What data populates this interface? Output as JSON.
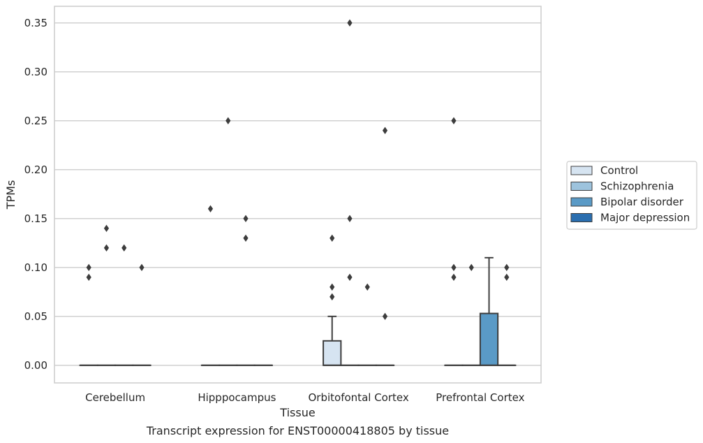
{
  "chart_data": {
    "type": "boxplot",
    "caption": "Transcript expression for ENST00000418805 by tissue",
    "xlabel": "Tissue",
    "ylabel": "TPMs",
    "ylim": [
      -0.018,
      0.367
    ],
    "yticks": [
      0.0,
      0.05,
      0.1,
      0.15,
      0.2,
      0.25,
      0.3,
      0.35
    ],
    "ytick_labels": [
      "0.00",
      "0.05",
      "0.10",
      "0.15",
      "0.20",
      "0.25",
      "0.30",
      "0.35"
    ],
    "grid": "horizontal",
    "legend_placement": "right, outside plot",
    "categories": [
      "Cerebellum",
      "Hipppocampus",
      "Orbitofontal Cortex",
      "Prefrontal Cortex"
    ],
    "series": [
      {
        "name": "Control",
        "color": "#d6e4f1",
        "boxes": [
          {
            "q1": 0.0,
            "median": 0.0,
            "q3": 0.0,
            "whislo": 0.0,
            "whishi": 0.0,
            "fliers": [
              0.1,
              0.09
            ]
          },
          {
            "q1": 0.0,
            "median": 0.0,
            "q3": 0.0,
            "whislo": 0.0,
            "whishi": 0.0,
            "fliers": [
              0.16
            ]
          },
          {
            "q1": 0.0,
            "median": 0.0,
            "q3": 0.025,
            "whislo": 0.0,
            "whishi": 0.05,
            "fliers": [
              0.13,
              0.08,
              0.07
            ]
          },
          {
            "q1": 0.0,
            "median": 0.0,
            "q3": 0.0,
            "whislo": 0.0,
            "whishi": 0.0,
            "fliers": [
              0.25,
              0.1,
              0.09
            ]
          }
        ]
      },
      {
        "name": "Schizophrenia",
        "color": "#9dc3dd",
        "boxes": [
          {
            "q1": 0.0,
            "median": 0.0,
            "q3": 0.0,
            "whislo": 0.0,
            "whishi": 0.0,
            "fliers": [
              0.14,
              0.12
            ]
          },
          {
            "q1": 0.0,
            "median": 0.0,
            "q3": 0.0,
            "whislo": 0.0,
            "whishi": 0.0,
            "fliers": [
              0.25
            ]
          },
          {
            "q1": 0.0,
            "median": 0.0,
            "q3": 0.0,
            "whislo": 0.0,
            "whishi": 0.0,
            "fliers": [
              0.35,
              0.15,
              0.09
            ]
          },
          {
            "q1": 0.0,
            "median": 0.0,
            "q3": 0.0,
            "whislo": 0.0,
            "whishi": 0.0,
            "fliers": [
              0.1
            ]
          }
        ]
      },
      {
        "name": "Bipolar disorder",
        "color": "#5a9ac6",
        "boxes": [
          {
            "q1": 0.0,
            "median": 0.0,
            "q3": 0.0,
            "whislo": 0.0,
            "whishi": 0.0,
            "fliers": [
              0.12
            ]
          },
          {
            "q1": 0.0,
            "median": 0.0,
            "q3": 0.0,
            "whislo": 0.0,
            "whishi": 0.0,
            "fliers": [
              0.15,
              0.13
            ]
          },
          {
            "q1": 0.0,
            "median": 0.0,
            "q3": 0.0,
            "whislo": 0.0,
            "whishi": 0.0,
            "fliers": [
              0.08
            ]
          },
          {
            "q1": 0.0,
            "median": 0.0,
            "q3": 0.053,
            "whislo": 0.0,
            "whishi": 0.11,
            "fliers": []
          }
        ]
      },
      {
        "name": "Major depression",
        "color": "#2a6eaf",
        "boxes": [
          {
            "q1": 0.0,
            "median": 0.0,
            "q3": 0.0,
            "whislo": 0.0,
            "whishi": 0.0,
            "fliers": [
              0.1
            ]
          },
          {
            "q1": 0.0,
            "median": 0.0,
            "q3": 0.0,
            "whislo": 0.0,
            "whishi": 0.0,
            "fliers": []
          },
          {
            "q1": 0.0,
            "median": 0.0,
            "q3": 0.0,
            "whislo": 0.0,
            "whishi": 0.0,
            "fliers": [
              0.24,
              0.05
            ]
          },
          {
            "q1": 0.0,
            "median": 0.0,
            "q3": 0.0,
            "whislo": 0.0,
            "whishi": 0.0,
            "fliers": [
              0.1,
              0.09
            ]
          }
        ]
      }
    ]
  }
}
